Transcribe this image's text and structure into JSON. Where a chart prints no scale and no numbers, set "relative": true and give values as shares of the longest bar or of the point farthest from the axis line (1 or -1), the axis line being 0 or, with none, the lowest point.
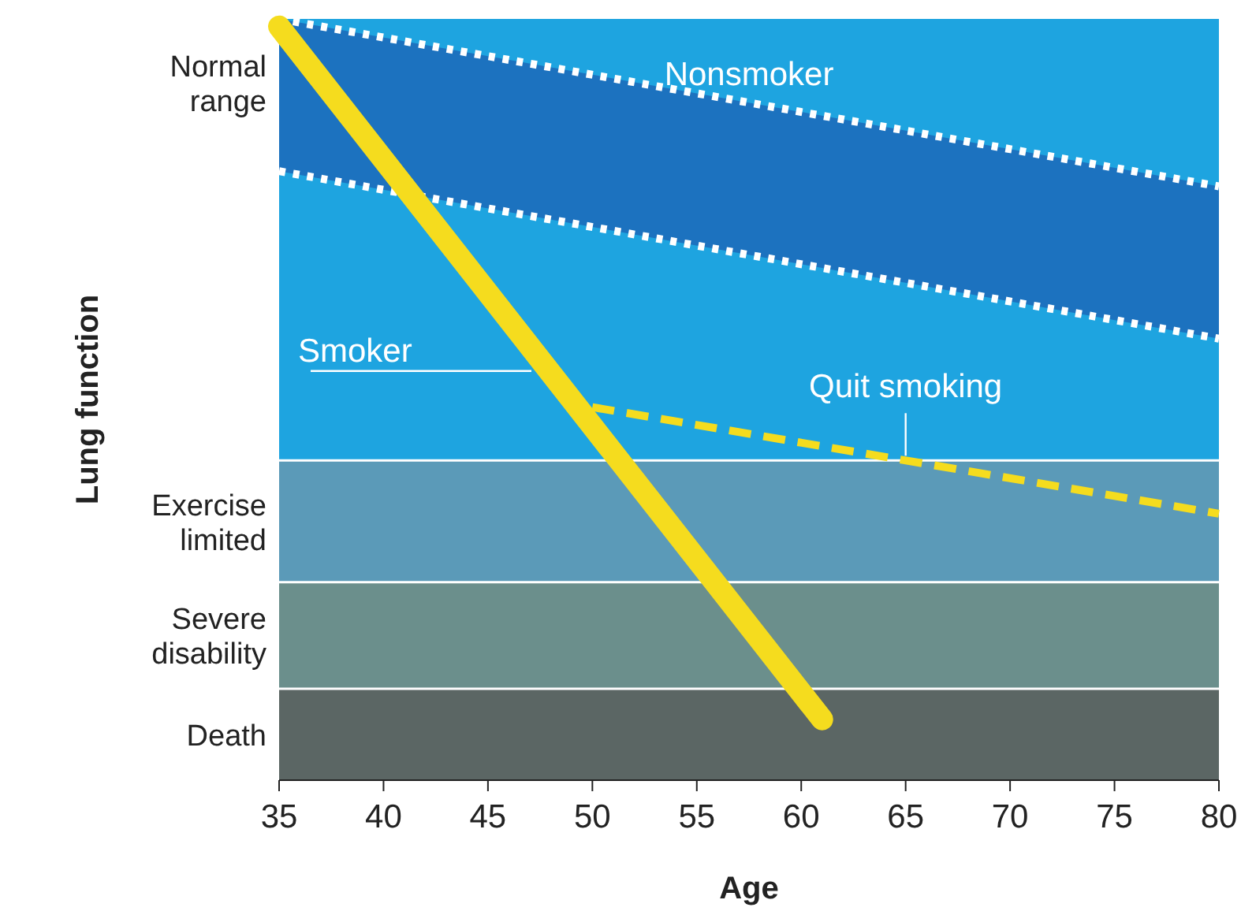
{
  "chart_data": {
    "type": "line",
    "relative": true,
    "xlabel": "Age",
    "ylabel": "Lung function",
    "xlim": [
      35,
      80
    ],
    "xticks": [
      35,
      40,
      45,
      50,
      55,
      60,
      65,
      70,
      75,
      80
    ],
    "grid": false,
    "series": [
      {
        "color": "#ffffff",
        "line_style": "dotted",
        "x": [
          35,
          80
        ],
        "values": [
          1,
          0.78
        ]
      },
      {
        "color": "#ffffff",
        "line_style": "dotted",
        "x": [
          35,
          80
        ],
        "values": [
          0.8,
          0.58
        ]
      },
      {
        "name": "Quit smoking",
        "color": "#f5dc1e",
        "line_style": "dashed",
        "x": [
          50,
          80
        ],
        "values": [
          0.49,
          0.35
        ]
      },
      {
        "name": "Smoker",
        "color": "#f5dc1e",
        "line_style": "solid",
        "x": [
          35,
          61
        ],
        "values": [
          0.99,
          0.08
        ]
      }
    ],
    "bands": [
      {
        "axis": "y",
        "from": 0.26,
        "to": 0.42,
        "label": "Exercise limited",
        "color": "#5b9ab8"
      },
      {
        "axis": "y",
        "from": 0.12,
        "to": 0.26,
        "label": "Severe disability",
        "color": "#6b8f8c"
      },
      {
        "axis": "y",
        "from": 0,
        "to": 0.12,
        "label": "Death",
        "color": "#5b6664"
      }
    ],
    "annotations": [
      "Nonsmoker",
      "Normal range"
    ]
  }
}
